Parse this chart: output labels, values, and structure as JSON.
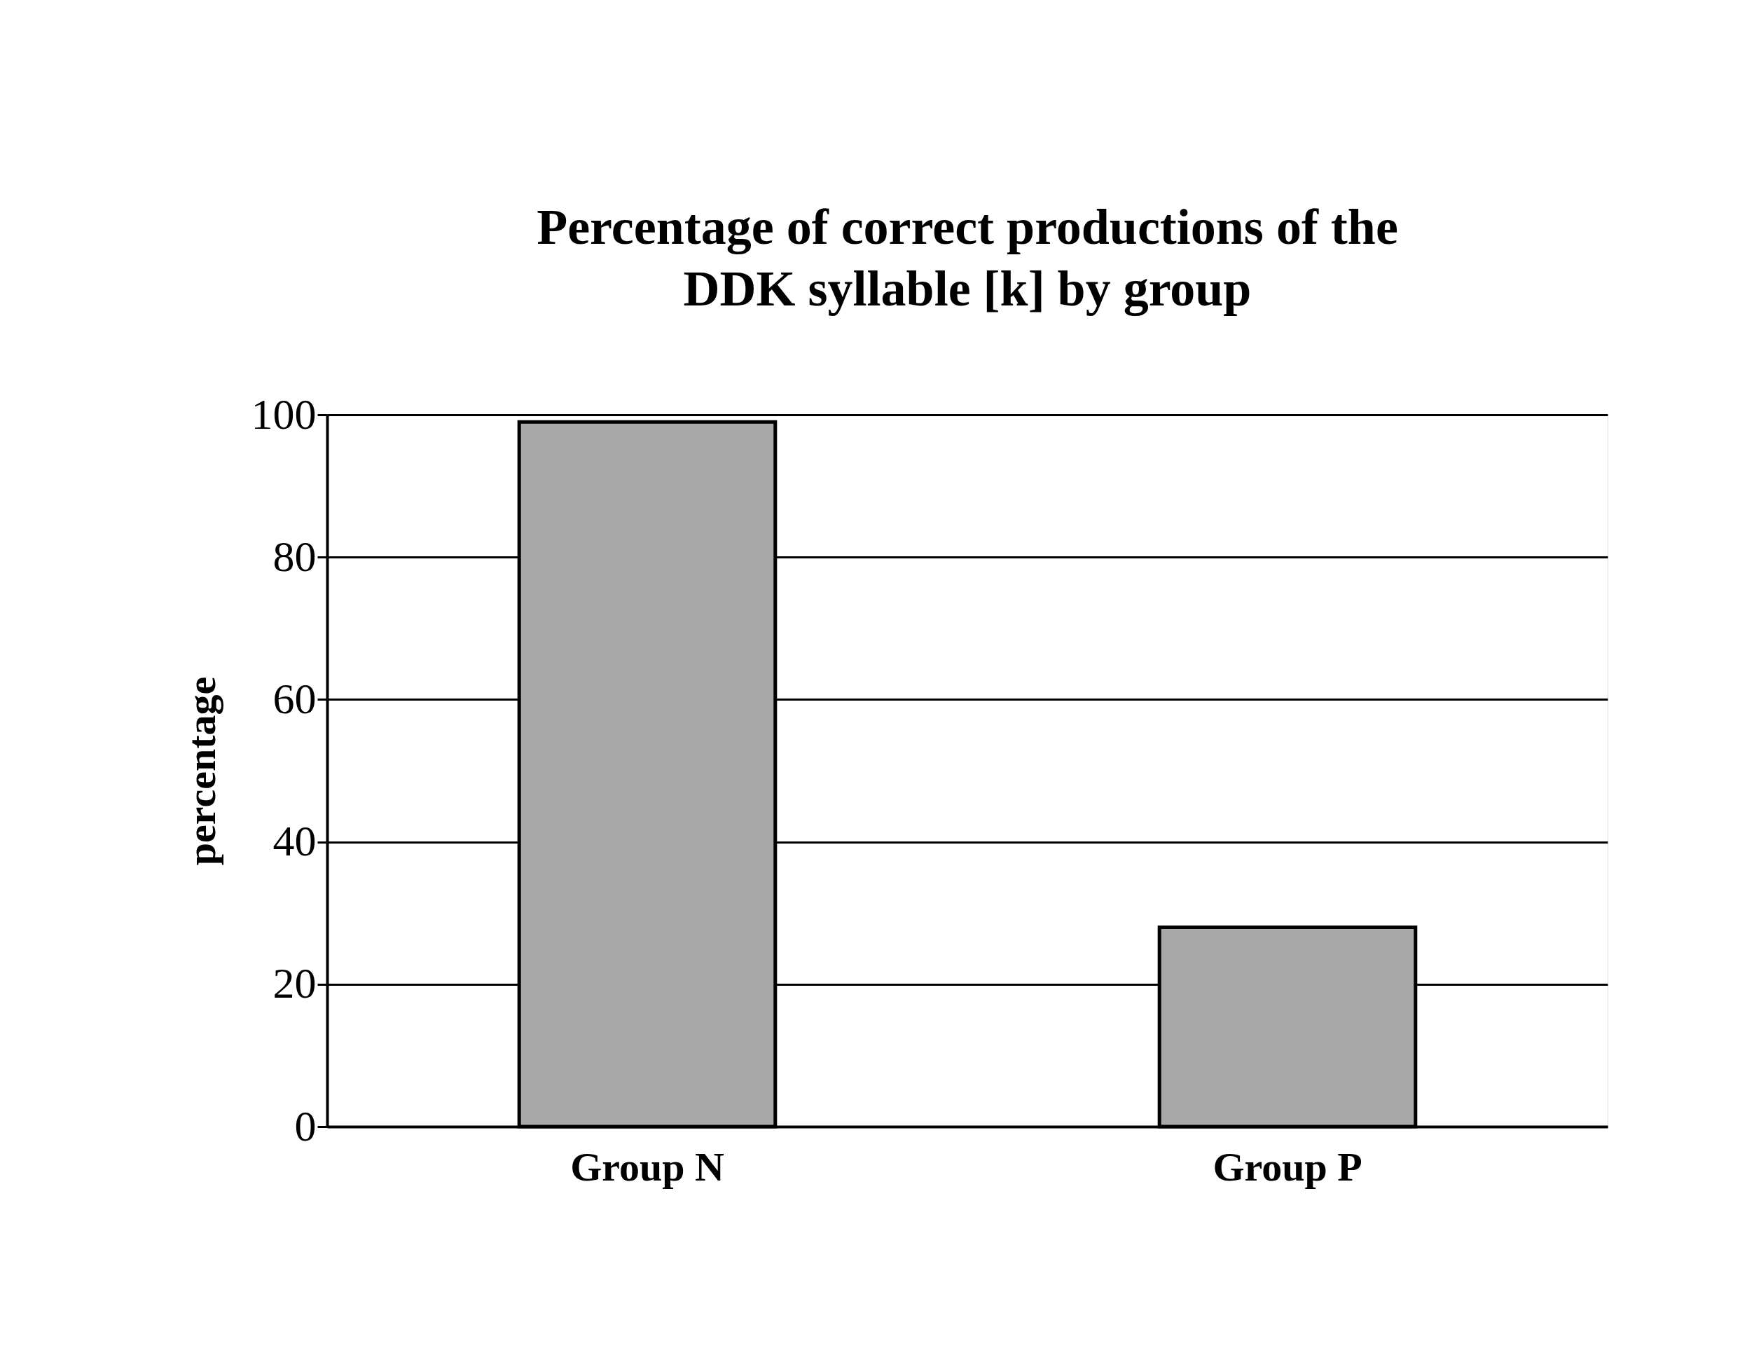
{
  "chart_data": {
    "type": "bar",
    "title": "Percentage of correct productions of the\nDDK syllable [k] by group",
    "ylabel": "percentage",
    "categories": [
      "Group N",
      "Group P"
    ],
    "values": [
      99,
      28
    ],
    "color": "#a8a8a8",
    "ylim": [
      0,
      100
    ],
    "yticks": [
      0,
      20,
      40,
      60,
      80,
      100
    ],
    "grid": "y"
  }
}
